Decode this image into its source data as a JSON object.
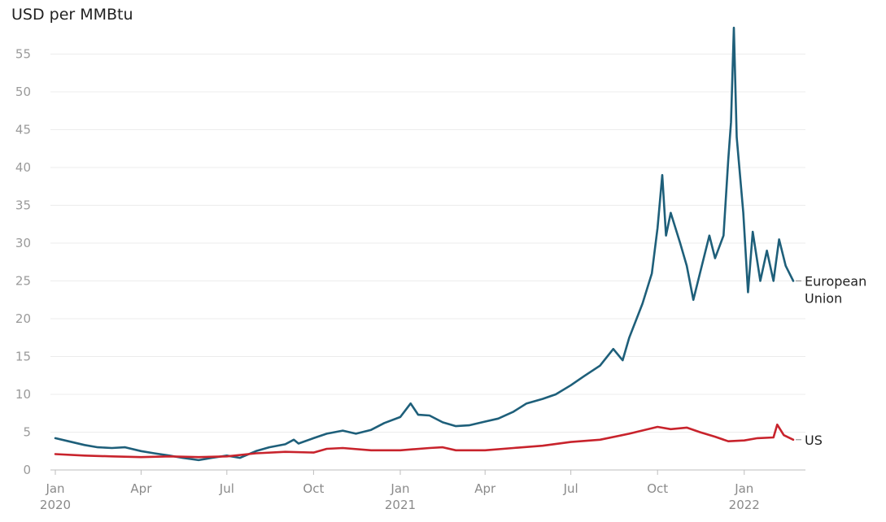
{
  "chart_data": {
    "type": "line",
    "title": "",
    "ylabel": "USD per MMBtu",
    "xlabel": "",
    "ylim": [
      0,
      60
    ],
    "yticks": [
      0,
      5,
      10,
      15,
      20,
      25,
      30,
      35,
      40,
      45,
      50,
      55
    ],
    "grid": true,
    "xticks": [
      {
        "date": "2020-01-01",
        "label": "Jan",
        "sublabel": "2020"
      },
      {
        "date": "2020-04-01",
        "label": "Apr",
        "sublabel": ""
      },
      {
        "date": "2020-07-01",
        "label": "Jul",
        "sublabel": ""
      },
      {
        "date": "2020-10-01",
        "label": "Oct",
        "sublabel": ""
      },
      {
        "date": "2021-01-01",
        "label": "Jan",
        "sublabel": "2021"
      },
      {
        "date": "2021-04-01",
        "label": "Apr",
        "sublabel": ""
      },
      {
        "date": "2021-07-01",
        "label": "Jul",
        "sublabel": ""
      },
      {
        "date": "2021-10-01",
        "label": "Oct",
        "sublabel": ""
      },
      {
        "date": "2022-01-01",
        "label": "Jan",
        "sublabel": "2022"
      }
    ],
    "xlim": [
      "2020-01-01",
      "2022-02-28"
    ],
    "series": [
      {
        "name": "European Union",
        "label_lines": [
          "European",
          "Union"
        ],
        "color": "#1e5f7a",
        "points": [
          [
            "2020-01-01",
            4.2
          ],
          [
            "2020-01-15",
            3.8
          ],
          [
            "2020-02-01",
            3.3
          ],
          [
            "2020-02-15",
            3.0
          ],
          [
            "2020-03-01",
            2.9
          ],
          [
            "2020-03-15",
            3.0
          ],
          [
            "2020-04-01",
            2.5
          ],
          [
            "2020-04-15",
            2.2
          ],
          [
            "2020-05-01",
            1.9
          ],
          [
            "2020-05-15",
            1.6
          ],
          [
            "2020-06-01",
            1.3
          ],
          [
            "2020-06-15",
            1.6
          ],
          [
            "2020-07-01",
            1.9
          ],
          [
            "2020-07-15",
            1.6
          ],
          [
            "2020-08-01",
            2.5
          ],
          [
            "2020-08-15",
            3.0
          ],
          [
            "2020-09-01",
            3.4
          ],
          [
            "2020-09-10",
            4.0
          ],
          [
            "2020-09-15",
            3.5
          ],
          [
            "2020-10-01",
            4.2
          ],
          [
            "2020-10-15",
            4.8
          ],
          [
            "2020-11-01",
            5.2
          ],
          [
            "2020-11-15",
            4.8
          ],
          [
            "2020-12-01",
            5.3
          ],
          [
            "2020-12-15",
            6.2
          ],
          [
            "2021-01-01",
            7.0
          ],
          [
            "2021-01-12",
            8.8
          ],
          [
            "2021-01-20",
            7.3
          ],
          [
            "2021-02-01",
            7.2
          ],
          [
            "2021-02-15",
            6.3
          ],
          [
            "2021-03-01",
            5.8
          ],
          [
            "2021-03-15",
            5.9
          ],
          [
            "2021-04-01",
            6.4
          ],
          [
            "2021-04-15",
            6.8
          ],
          [
            "2021-05-01",
            7.7
          ],
          [
            "2021-05-15",
            8.8
          ],
          [
            "2021-06-01",
            9.4
          ],
          [
            "2021-06-15",
            10.0
          ],
          [
            "2021-07-01",
            11.2
          ],
          [
            "2021-07-15",
            12.4
          ],
          [
            "2021-08-01",
            13.8
          ],
          [
            "2021-08-15",
            16.0
          ],
          [
            "2021-08-25",
            14.5
          ],
          [
            "2021-09-01",
            17.5
          ],
          [
            "2021-09-15",
            22.0
          ],
          [
            "2021-09-25",
            26.0
          ],
          [
            "2021-10-01",
            32.0
          ],
          [
            "2021-10-06",
            39.0
          ],
          [
            "2021-10-10",
            31.0
          ],
          [
            "2021-10-15",
            34.0
          ],
          [
            "2021-10-25",
            30.0
          ],
          [
            "2021-11-01",
            27.0
          ],
          [
            "2021-11-08",
            22.5
          ],
          [
            "2021-11-15",
            26.0
          ],
          [
            "2021-11-25",
            31.0
          ],
          [
            "2021-12-01",
            28.0
          ],
          [
            "2021-12-10",
            31.0
          ],
          [
            "2021-12-15",
            41.0
          ],
          [
            "2021-12-18",
            46.0
          ],
          [
            "2021-12-21",
            58.5
          ],
          [
            "2021-12-24",
            44.0
          ],
          [
            "2021-12-31",
            34.0
          ],
          [
            "2022-01-05",
            23.5
          ],
          [
            "2022-01-10",
            31.5
          ],
          [
            "2022-01-18",
            25.0
          ],
          [
            "2022-01-25",
            29.0
          ],
          [
            "2022-02-01",
            25.0
          ],
          [
            "2022-02-07",
            30.5
          ],
          [
            "2022-02-14",
            27.0
          ],
          [
            "2022-02-22",
            25.0
          ]
        ]
      },
      {
        "name": "US",
        "label_lines": [
          "US"
        ],
        "color": "#c8232c",
        "points": [
          [
            "2020-01-01",
            2.1
          ],
          [
            "2020-02-01",
            1.9
          ],
          [
            "2020-03-01",
            1.8
          ],
          [
            "2020-04-01",
            1.7
          ],
          [
            "2020-05-01",
            1.8
          ],
          [
            "2020-06-01",
            1.7
          ],
          [
            "2020-07-01",
            1.8
          ],
          [
            "2020-08-01",
            2.2
          ],
          [
            "2020-09-01",
            2.4
          ],
          [
            "2020-10-01",
            2.3
          ],
          [
            "2020-10-15",
            2.8
          ],
          [
            "2020-11-01",
            2.9
          ],
          [
            "2020-12-01",
            2.6
          ],
          [
            "2021-01-01",
            2.6
          ],
          [
            "2021-02-01",
            2.9
          ],
          [
            "2021-02-15",
            3.0
          ],
          [
            "2021-03-01",
            2.6
          ],
          [
            "2021-04-01",
            2.6
          ],
          [
            "2021-05-01",
            2.9
          ],
          [
            "2021-06-01",
            3.2
          ],
          [
            "2021-07-01",
            3.7
          ],
          [
            "2021-08-01",
            4.0
          ],
          [
            "2021-09-01",
            4.8
          ],
          [
            "2021-10-01",
            5.7
          ],
          [
            "2021-10-15",
            5.4
          ],
          [
            "2021-11-01",
            5.6
          ],
          [
            "2021-11-15",
            5.0
          ],
          [
            "2021-12-01",
            4.4
          ],
          [
            "2021-12-15",
            3.8
          ],
          [
            "2022-01-01",
            3.9
          ],
          [
            "2022-01-15",
            4.2
          ],
          [
            "2022-02-01",
            4.3
          ],
          [
            "2022-02-05",
            6.0
          ],
          [
            "2022-02-12",
            4.6
          ],
          [
            "2022-02-22",
            4.0
          ]
        ]
      }
    ]
  }
}
